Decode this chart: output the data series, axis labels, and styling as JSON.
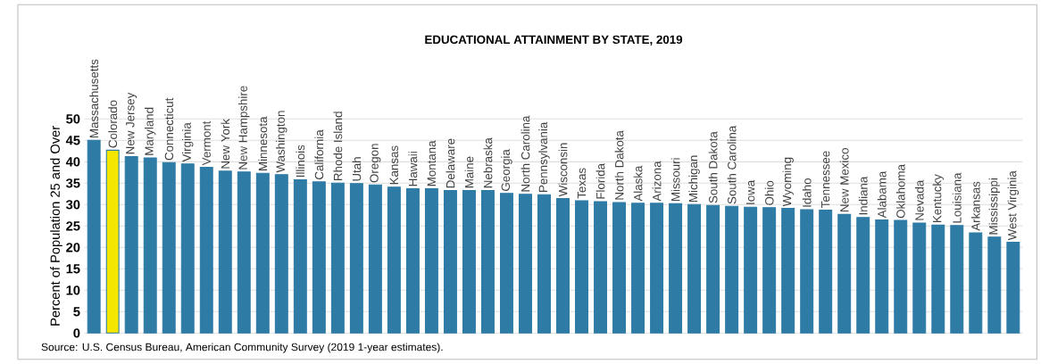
{
  "chart_data": {
    "type": "bar",
    "title": "EDUCATIONAL ATTAINMENT BY STATE, 2019",
    "ylabel": "Percent of Population 25 and Over",
    "annotations": [
      "Source: U.S. Census Bureau, American Community Survey (2019 1-year estimates)."
    ],
    "categories": [
      "Massachusetts",
      "Colorado",
      "New Jersey",
      "Maryland",
      "Connecticut",
      "Virginia",
      "Vermont",
      "New York",
      "New Hampshire",
      "Minnesota",
      "Washington",
      "Illinois",
      "California",
      "Rhode Island",
      "Utah",
      "Oregon",
      "Kansas",
      "Hawaii",
      "Montana",
      "Delaware",
      "Maine",
      "Nebraska",
      "Georgia",
      "North Carolina",
      "Pennsylvania",
      "Wisconsin",
      "Texas",
      "Florida",
      "North Dakota",
      "Alaska",
      "Arizona",
      "Missouri",
      "Michigan",
      "South Dakota",
      "South Carolina",
      "Iowa",
      "Ohio",
      "Wyoming",
      "Idaho",
      "Tennessee",
      "New Mexico",
      "Indiana",
      "Alabama",
      "Oklahoma",
      "Nevada",
      "Kentucky",
      "Louisiana",
      "Arkansas",
      "Mississippi",
      "West Virginia"
    ],
    "values": [
      45.0,
      42.7,
      41.2,
      40.9,
      39.8,
      39.5,
      38.7,
      37.8,
      37.6,
      37.3,
      37.0,
      35.8,
      35.3,
      35.0,
      34.9,
      34.6,
      34.1,
      33.7,
      33.7,
      33.3,
      33.3,
      33.3,
      32.6,
      32.4,
      32.3,
      31.4,
      30.9,
      30.7,
      30.5,
      30.3,
      30.3,
      30.2,
      30.0,
      29.8,
      29.6,
      29.4,
      29.3,
      29.1,
      28.8,
      28.7,
      27.7,
      27.0,
      26.4,
      26.3,
      25.7,
      25.2,
      25.1,
      23.4,
      22.4,
      21.2
    ],
    "color": "#2e7ba6",
    "colors": [
      "#2e7ba6",
      "#f5e600",
      "#2e7ba6",
      "#2e7ba6",
      "#2e7ba6",
      "#2e7ba6",
      "#2e7ba6",
      "#2e7ba6",
      "#2e7ba6",
      "#2e7ba6",
      "#2e7ba6",
      "#2e7ba6",
      "#2e7ba6",
      "#2e7ba6",
      "#2e7ba6",
      "#2e7ba6",
      "#2e7ba6",
      "#2e7ba6",
      "#2e7ba6",
      "#2e7ba6",
      "#2e7ba6",
      "#2e7ba6",
      "#2e7ba6",
      "#2e7ba6",
      "#2e7ba6",
      "#2e7ba6",
      "#2e7ba6",
      "#2e7ba6",
      "#2e7ba6",
      "#2e7ba6",
      "#2e7ba6",
      "#2e7ba6",
      "#2e7ba6",
      "#2e7ba6",
      "#2e7ba6",
      "#2e7ba6",
      "#2e7ba6",
      "#2e7ba6",
      "#2e7ba6",
      "#2e7ba6",
      "#2e7ba6",
      "#2e7ba6",
      "#2e7ba6",
      "#2e7ba6",
      "#2e7ba6",
      "#2e7ba6",
      "#2e7ba6",
      "#2e7ba6",
      "#2e7ba6",
      "#2e7ba6"
    ],
    "ylim": [
      0,
      50
    ],
    "yticks": [
      0,
      5,
      10,
      15,
      20,
      25,
      30,
      35,
      40,
      45,
      50
    ],
    "grid": "y"
  }
}
